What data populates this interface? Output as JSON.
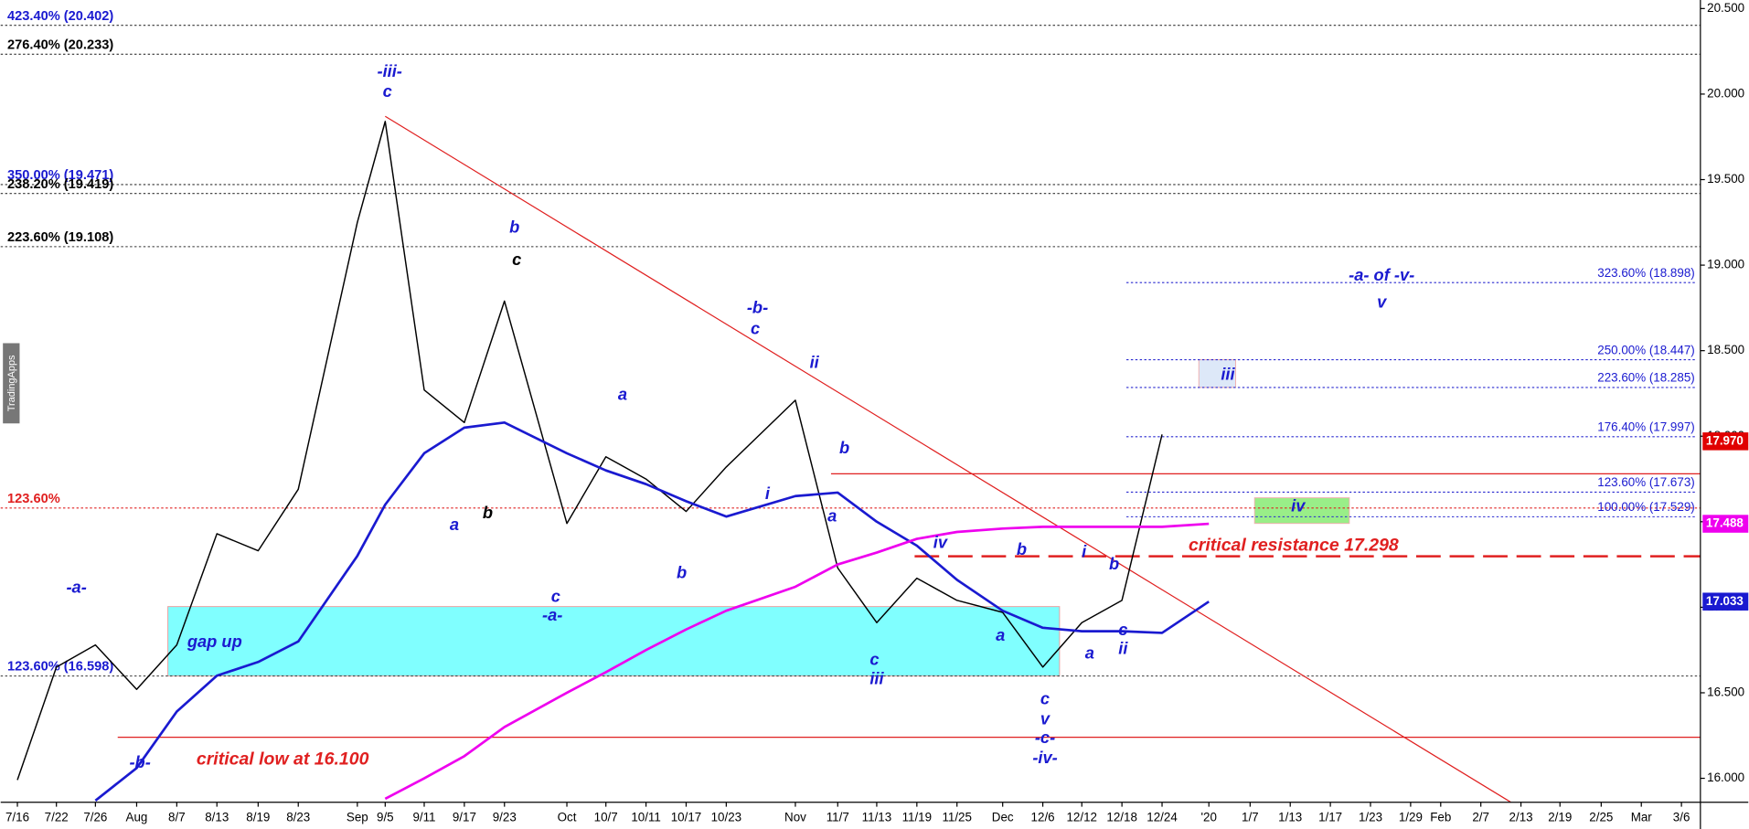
{
  "chart_data": {
    "type": "line",
    "watermark": "TradingApps",
    "x": [
      "7/16",
      "7/22",
      "7/26",
      "Aug",
      "8/7",
      "8/13",
      "8/19",
      "8/23",
      "Sep",
      "9/5",
      "9/11",
      "9/17",
      "9/23",
      "Oct",
      "10/7",
      "10/11",
      "10/17",
      "10/23",
      "Nov",
      "11/7",
      "11/13",
      "11/19",
      "11/25",
      "Dec",
      "12/6",
      "12/12",
      "12/18",
      "12/24",
      "'20",
      "1/7",
      "1/13",
      "1/17",
      "1/23",
      "1/29",
      "Feb",
      "2/7",
      "2/13",
      "2/19",
      "2/25",
      "Mar",
      "3/6"
    ],
    "series": [
      {
        "color": "#000000",
        "values": [
          15.99,
          16.65,
          16.78,
          16.52,
          16.78,
          17.43,
          17.33,
          17.69,
          19.25,
          19.84,
          18.27,
          18.08,
          18.79,
          17.49,
          17.88,
          17.75,
          17.56,
          17.82,
          18.21,
          17.23,
          16.91,
          17.17,
          17.04,
          16.97,
          16.65,
          16.91,
          17.04,
          18.01,
          null,
          null,
          null,
          null,
          null,
          null,
          null,
          null,
          null,
          null,
          null,
          null,
          null
        ]
      },
      {
        "color": "#1a1ad0",
        "values": [
          null,
          null,
          15.87,
          16.06,
          16.39,
          16.6,
          16.68,
          16.8,
          17.3,
          17.6,
          17.9,
          18.05,
          18.08,
          17.9,
          17.8,
          17.72,
          17.62,
          17.53,
          17.65,
          17.67,
          17.5,
          17.36,
          17.16,
          16.98,
          16.88,
          16.86,
          16.86,
          16.85,
          17.033,
          null,
          null,
          null,
          null,
          null,
          null,
          null,
          null,
          null,
          null,
          null,
          null
        ]
      },
      {
        "color": "#ee00ee",
        "values": [
          null,
          null,
          null,
          null,
          null,
          null,
          null,
          null,
          null,
          15.88,
          16.0,
          16.13,
          16.3,
          16.5,
          16.62,
          16.75,
          16.87,
          16.98,
          17.12,
          17.25,
          17.32,
          17.4,
          17.44,
          17.46,
          17.47,
          17.47,
          17.47,
          17.47,
          17.488,
          null,
          null,
          null,
          null,
          null,
          null,
          null,
          null,
          null,
          null,
          null,
          null
        ]
      }
    ],
    "ylim": [
      15.86,
      20.55
    ],
    "yticks": [
      {
        "value": 16,
        "label": "16.000"
      },
      {
        "value": 16.5,
        "label": "16.500"
      },
      {
        "value": 17,
        "label": "17.000"
      },
      {
        "value": 17.5,
        "label": "17.500"
      },
      {
        "value": 18,
        "label": "18.000"
      },
      {
        "value": 18.5,
        "label": "18.500"
      },
      {
        "value": 19,
        "label": "19.000"
      },
      {
        "value": 19.5,
        "label": "19.500"
      },
      {
        "value": 20,
        "label": "20.000"
      },
      {
        "value": 20.5,
        "label": "20.500"
      }
    ],
    "levels": [
      {
        "value": 20.402,
        "label": "423.40% (20.402)",
        "color": "#1a1ad0",
        "side": "left"
      },
      {
        "value": 20.233,
        "label": "276.40% (20.233)",
        "color": "#000000",
        "side": "left"
      },
      {
        "value": 19.471,
        "label": "350.00% (19.471)",
        "color": "#1a1ad0",
        "side": "left"
      },
      {
        "value": 19.419,
        "label": "238.20% (19.419)",
        "color": "#000000",
        "side": "left"
      },
      {
        "value": 19.108,
        "label": "223.60% (19.108)",
        "color": "#000000",
        "side": "left"
      },
      {
        "value": 17.58,
        "label": "123.60%",
        "color": "#e02020",
        "side": "left"
      },
      {
        "value": 16.598,
        "label": "123.60% (16.598)",
        "color": "#1a1ad0",
        "side": "left"
      },
      {
        "value": 18.898,
        "label": "323.60% (18.898)",
        "color": "#1a1ad0",
        "side": "right"
      },
      {
        "value": 18.447,
        "label": "250.00% (18.447)",
        "color": "#1a1ad0",
        "side": "right"
      },
      {
        "value": 18.285,
        "label": "223.60% (18.285)",
        "color": "#1a1ad0",
        "side": "right"
      },
      {
        "value": 17.997,
        "label": "176.40% (17.997)",
        "color": "#1a1ad0",
        "side": "right"
      },
      {
        "value": 17.673,
        "label": "123.60% (17.673)",
        "color": "#1a1ad0",
        "side": "right"
      },
      {
        "value": 17.529,
        "label": "100.00% (17.529)",
        "color": "#1a1ad0",
        "side": "right"
      }
    ],
    "lines": [
      {
        "value": 17.78,
        "color": "#e02020"
      },
      {
        "value": 17.298,
        "color": "#e02020",
        "dashed": true
      },
      {
        "value": 16.24,
        "color": "#e02020"
      }
    ],
    "zones": [
      {
        "ylim": [
          16.598,
          17.004
        ],
        "color": "#80ffff"
      },
      {
        "ylim": [
          17.49,
          17.64
        ],
        "color": "#99ee88"
      },
      {
        "ylim": [
          18.285,
          18.447
        ],
        "color": "#dde8f8"
      }
    ],
    "trendline": {
      "values": [
        19.87,
        15.86
      ],
      "color": "#e02020"
    },
    "price_tags": [
      {
        "value": 17.97,
        "label": "17.970",
        "color": "#e00000"
      },
      {
        "value": 17.488,
        "label": "17.488",
        "color": "#ee00ee"
      },
      {
        "value": 17.033,
        "label": "17.033",
        "color": "#1a1ad0"
      }
    ],
    "annotations": [
      {
        "text": "-iii-",
        "color": "#1a1ad0"
      },
      {
        "text": "c",
        "color": "#1a1ad0"
      },
      {
        "text": "b",
        "color": "#1a1ad0"
      },
      {
        "text": "c",
        "color": "#000000"
      },
      {
        "text": "-b-",
        "color": "#1a1ad0"
      },
      {
        "text": "c",
        "color": "#1a1ad0"
      },
      {
        "text": "ii",
        "color": "#1a1ad0"
      },
      {
        "text": "a",
        "color": "#1a1ad0"
      },
      {
        "text": "b",
        "color": "#1a1ad0"
      },
      {
        "text": "i",
        "color": "#1a1ad0"
      },
      {
        "text": "a",
        "color": "#1a1ad0"
      },
      {
        "text": "a",
        "color": "#1a1ad0"
      },
      {
        "text": "b",
        "color": "#000000"
      },
      {
        "text": "c",
        "color": "#1a1ad0"
      },
      {
        "text": "-a-",
        "color": "#1a1ad0"
      },
      {
        "text": "b",
        "color": "#1a1ad0"
      },
      {
        "text": "-a-",
        "color": "#1a1ad0"
      },
      {
        "text": "gap up",
        "color": "#1a1ad0"
      },
      {
        "text": "-b-",
        "color": "#1a1ad0"
      },
      {
        "text": "critical low at 16.100",
        "color": "#e02020"
      },
      {
        "text": "c",
        "color": "#1a1ad0"
      },
      {
        "text": "iii",
        "color": "#1a1ad0"
      },
      {
        "text": "iv",
        "color": "#1a1ad0"
      },
      {
        "text": "b",
        "color": "#1a1ad0"
      },
      {
        "text": "a",
        "color": "#1a1ad0"
      },
      {
        "text": "i",
        "color": "#1a1ad0"
      },
      {
        "text": "b",
        "color": "#1a1ad0"
      },
      {
        "text": "c",
        "color": "#1a1ad0"
      },
      {
        "text": "ii",
        "color": "#1a1ad0"
      },
      {
        "text": "a",
        "color": "#1a1ad0"
      },
      {
        "text": "c",
        "color": "#1a1ad0"
      },
      {
        "text": "v",
        "color": "#1a1ad0"
      },
      {
        "text": "-c-",
        "color": "#1a1ad0"
      },
      {
        "text": "-iv-",
        "color": "#1a1ad0"
      },
      {
        "text": "-a- of -v-",
        "color": "#1a1ad0"
      },
      {
        "text": "v",
        "color": "#1a1ad0"
      },
      {
        "text": "iii",
        "color": "#1a1ad0"
      },
      {
        "text": "iv",
        "color": "#1a1ad0"
      },
      {
        "text": "critical resistance 17.298",
        "color": "#e02020"
      }
    ]
  }
}
